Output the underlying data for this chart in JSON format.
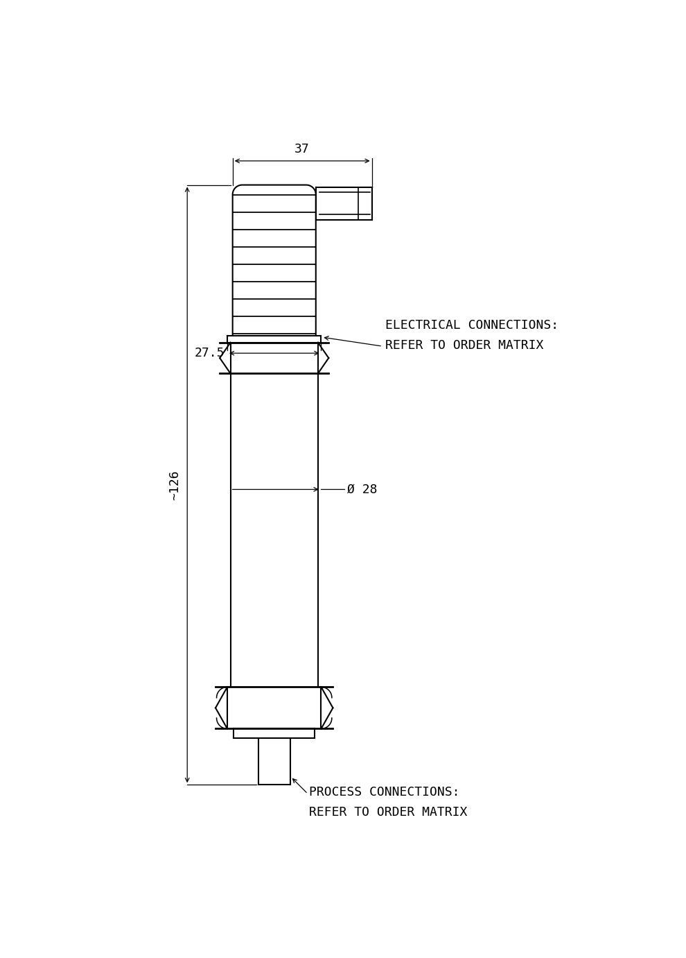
{
  "bg_color": "#ffffff",
  "line_color": "#000000",
  "lw": 1.5,
  "tlw": 2.0,
  "dlw": 0.9,
  "dim_37_label": "37",
  "dim_27_5_label": "27.5",
  "dim_126_label": "~126",
  "dim_28_label": "Ø 28",
  "elec_conn_line1": "ELECTRICAL CONNECTIONS:",
  "elec_conn_line2": "REFER TO ORDER MATRIX",
  "proc_conn_line1": "PROCESS CONNECTIONS:",
  "proc_conn_line2": "REFER TO ORDER MATRIX",
  "font_size": 13,
  "figw": 9.9,
  "figh": 13.81
}
